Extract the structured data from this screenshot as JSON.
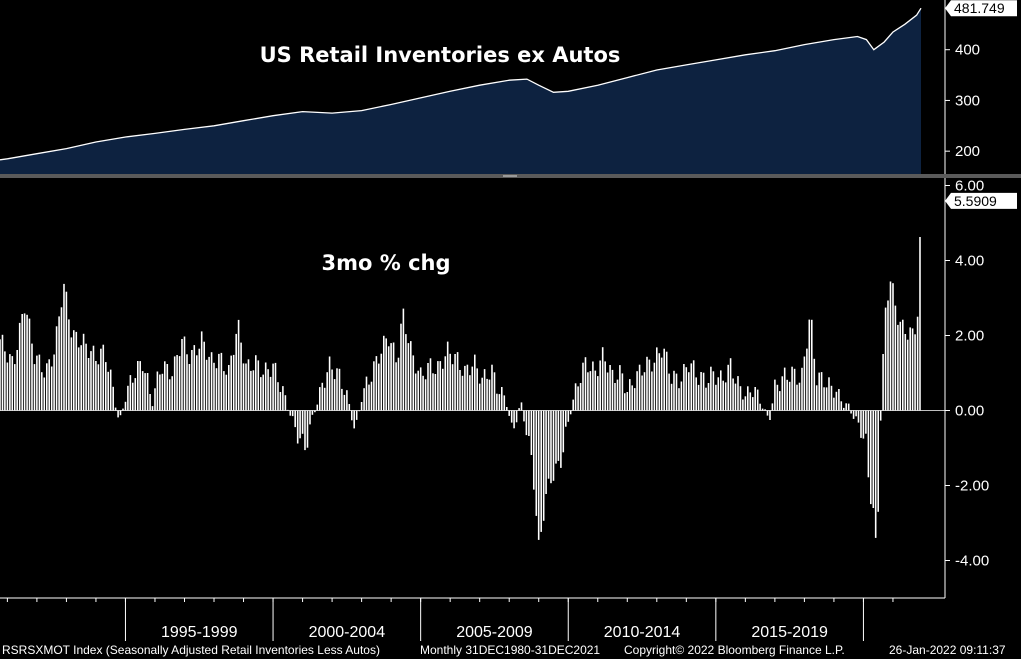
{
  "chart_data": [
    {
      "type": "area",
      "title": "US Retail Inventories ex Autos",
      "yticks": [
        200,
        300,
        400
      ],
      "ylim": [
        155,
        498
      ],
      "last_value_label": "481.749",
      "x_start": 1990.75,
      "x_end": 2021.95,
      "fill_color": "#0d2240",
      "line_color": "#ffffff",
      "points": [
        [
          1990.75,
          183
        ],
        [
          1991.0,
          185
        ],
        [
          1992.0,
          195
        ],
        [
          1993.0,
          205
        ],
        [
          1994.0,
          218
        ],
        [
          1995.0,
          228
        ],
        [
          1996.0,
          235
        ],
        [
          1997.0,
          243
        ],
        [
          1998.0,
          250
        ],
        [
          1999.0,
          260
        ],
        [
          2000.0,
          270
        ],
        [
          2001.0,
          278
        ],
        [
          2002.0,
          275
        ],
        [
          2003.0,
          280
        ],
        [
          2004.0,
          292
        ],
        [
          2005.0,
          305
        ],
        [
          2006.0,
          318
        ],
        [
          2007.0,
          330
        ],
        [
          2008.0,
          340
        ],
        [
          2008.6,
          342
        ],
        [
          2009.0,
          330
        ],
        [
          2009.5,
          316
        ],
        [
          2010.0,
          318
        ],
        [
          2011.0,
          330
        ],
        [
          2012.0,
          345
        ],
        [
          2013.0,
          360
        ],
        [
          2014.0,
          370
        ],
        [
          2015.0,
          380
        ],
        [
          2016.0,
          390
        ],
        [
          2017.0,
          398
        ],
        [
          2018.0,
          410
        ],
        [
          2019.0,
          420
        ],
        [
          2019.8,
          426
        ],
        [
          2020.1,
          420
        ],
        [
          2020.35,
          400
        ],
        [
          2020.7,
          415
        ],
        [
          2021.0,
          435
        ],
        [
          2021.4,
          450
        ],
        [
          2021.8,
          468
        ],
        [
          2021.95,
          481.749
        ]
      ]
    },
    {
      "type": "bar",
      "title": "3mo % chg",
      "yticks": [
        -4.0,
        -2.0,
        0.0,
        2.0,
        4.0,
        6.0
      ],
      "ytick_labels": [
        "-4.00",
        "-2.00",
        "0.00",
        "2.00",
        "4.00",
        "6.00"
      ],
      "ylim": [
        -5.0,
        6.2
      ],
      "last_value_label": "5.5909",
      "x_start": 1990.75,
      "x_end": 2021.95,
      "bar_color": "#ffffff",
      "keyframes": [
        [
          1990.75,
          1.9
        ],
        [
          1991.2,
          1.2
        ],
        [
          1991.6,
          2.9
        ],
        [
          1991.9,
          1.5
        ],
        [
          1992.3,
          1.0
        ],
        [
          1992.6,
          1.6
        ],
        [
          1992.9,
          3.4
        ],
        [
          1993.2,
          2.0
        ],
        [
          1993.6,
          1.8
        ],
        [
          1994.0,
          1.4
        ],
        [
          1994.3,
          1.6
        ],
        [
          1994.6,
          0.5
        ],
        [
          1994.8,
          -0.4
        ],
        [
          1995.0,
          0.4
        ],
        [
          1995.3,
          1.0
        ],
        [
          1995.6,
          1.3
        ],
        [
          1995.9,
          0.2
        ],
        [
          1996.2,
          1.2
        ],
        [
          1996.6,
          1.0
        ],
        [
          1996.9,
          1.9
        ],
        [
          1997.2,
          1.4
        ],
        [
          1997.6,
          1.9
        ],
        [
          1997.9,
          1.3
        ],
        [
          1998.2,
          1.4
        ],
        [
          1998.5,
          1.0
        ],
        [
          1998.8,
          2.3
        ],
        [
          1999.1,
          1.1
        ],
        [
          1999.4,
          1.3
        ],
        [
          1999.7,
          1.0
        ],
        [
          2000.0,
          1.2
        ],
        [
          2000.3,
          0.6
        ],
        [
          2000.5,
          0.1
        ],
        [
          2000.8,
          -0.6
        ],
        [
          2001.1,
          -1.0
        ],
        [
          2001.3,
          -0.3
        ],
        [
          2001.6,
          0.5
        ],
        [
          2001.9,
          1.2
        ],
        [
          2002.2,
          1.0
        ],
        [
          2002.5,
          0.4
        ],
        [
          2002.8,
          -0.6
        ],
        [
          2003.0,
          0.4
        ],
        [
          2003.3,
          0.9
        ],
        [
          2003.6,
          1.5
        ],
        [
          2003.9,
          2.0
        ],
        [
          2004.2,
          1.3
        ],
        [
          2004.4,
          2.6
        ],
        [
          2004.7,
          1.5
        ],
        [
          2005.0,
          0.9
        ],
        [
          2005.3,
          1.2
        ],
        [
          2005.6,
          1.1
        ],
        [
          2005.9,
          1.6
        ],
        [
          2006.2,
          1.4
        ],
        [
          2006.5,
          1.0
        ],
        [
          2006.8,
          1.3
        ],
        [
          2007.1,
          0.8
        ],
        [
          2007.4,
          1.1
        ],
        [
          2007.6,
          0.6
        ],
        [
          2007.9,
          0.3
        ],
        [
          2008.1,
          -0.6
        ],
        [
          2008.4,
          0.2
        ],
        [
          2008.6,
          -0.6
        ],
        [
          2008.8,
          -1.5
        ],
        [
          2009.0,
          -3.7
        ],
        [
          2009.2,
          -2.5
        ],
        [
          2009.4,
          -1.8
        ],
        [
          2009.6,
          -1.6
        ],
        [
          2009.8,
          -1.2
        ],
        [
          2010.0,
          -0.3
        ],
        [
          2010.3,
          0.7
        ],
        [
          2010.6,
          1.3
        ],
        [
          2010.9,
          1.0
        ],
        [
          2011.2,
          1.5
        ],
        [
          2011.5,
          0.9
        ],
        [
          2011.8,
          1.0
        ],
        [
          2012.0,
          0.5
        ],
        [
          2012.3,
          0.9
        ],
        [
          2012.6,
          1.2
        ],
        [
          2012.9,
          1.3
        ],
        [
          2013.2,
          1.7
        ],
        [
          2013.5,
          0.9
        ],
        [
          2013.8,
          0.8
        ],
        [
          2014.1,
          1.3
        ],
        [
          2014.4,
          0.9
        ],
        [
          2014.7,
          0.8
        ],
        [
          2014.9,
          1.0
        ],
        [
          2015.2,
          0.8
        ],
        [
          2015.5,
          1.2
        ],
        [
          2015.8,
          0.6
        ],
        [
          2016.0,
          0.4
        ],
        [
          2016.3,
          0.6
        ],
        [
          2016.6,
          0.1
        ],
        [
          2016.8,
          -0.3
        ],
        [
          2017.0,
          0.6
        ],
        [
          2017.3,
          0.9
        ],
        [
          2017.6,
          1.0
        ],
        [
          2017.9,
          0.8
        ],
        [
          2018.2,
          2.6
        ],
        [
          2018.4,
          0.9
        ],
        [
          2018.7,
          0.8
        ],
        [
          2018.9,
          0.6
        ],
        [
          2019.1,
          0.5
        ],
        [
          2019.3,
          0.2
        ],
        [
          2019.5,
          0.1
        ],
        [
          2019.7,
          -0.2
        ],
        [
          2019.9,
          -0.5
        ],
        [
          2020.1,
          -0.9
        ],
        [
          2020.2,
          -2.2
        ],
        [
          2020.3,
          -2.3
        ],
        [
          2020.45,
          -4.0
        ],
        [
          2020.6,
          0.3
        ],
        [
          2020.75,
          2.6
        ],
        [
          2020.9,
          3.6
        ],
        [
          2021.1,
          2.7
        ],
        [
          2021.3,
          2.2
        ],
        [
          2021.5,
          2.1
        ],
        [
          2021.7,
          2.0
        ],
        [
          2021.85,
          2.7
        ],
        [
          2021.95,
          5.5909
        ]
      ]
    }
  ],
  "x_axis": {
    "labels": [
      "1995-1999",
      "2000-2004",
      "2005-2009",
      "2010-2014",
      "2015-2019"
    ],
    "label_centers": [
      1997.5,
      2002.5,
      2007.5,
      2012.5,
      2017.5
    ],
    "boundaries": [
      1995,
      2000,
      2005,
      2010,
      2015,
      2020
    ]
  },
  "footer": {
    "ticker": "RSRSXMOT Index (Seasonally Adjusted Retail Inventories Less Autos)",
    "frequency": "Monthly 31DEC1980-31DEC2021",
    "copyright": "Copyright© 2022 Bloomberg Finance L.P.",
    "timestamp": "26-Jan-2022 09:11:37"
  },
  "colors": {
    "background": "#000000",
    "panel_fill": "#0d2240",
    "divider": "#5a5a5a",
    "tag_background": "#ffffff"
  }
}
